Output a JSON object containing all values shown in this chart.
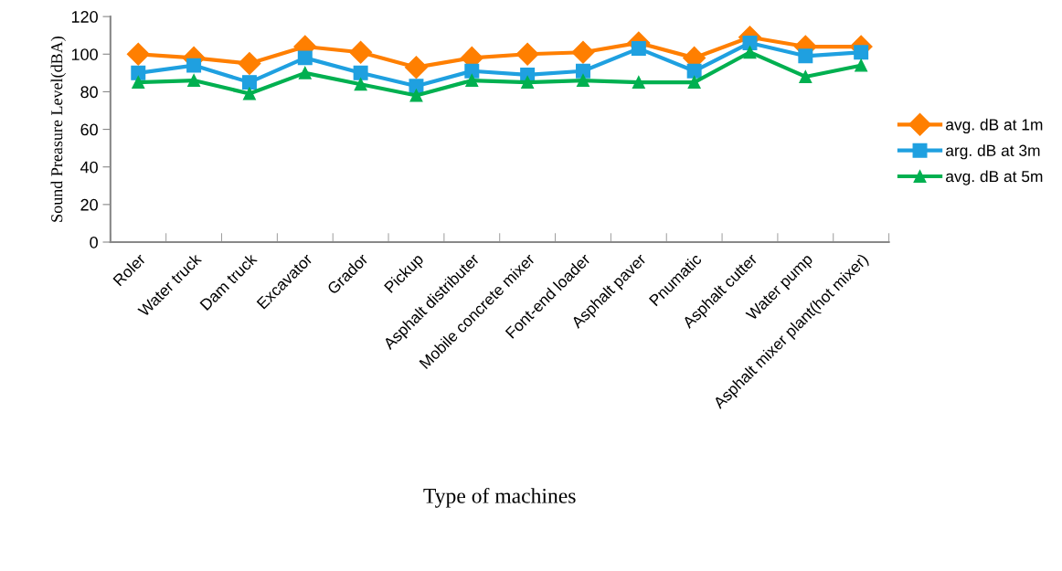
{
  "chart_data": {
    "type": "line",
    "xlabel": "Type of machines",
    "ylabel": "Sound Preasure Level(dBA)",
    "categories": [
      "Roler",
      "Water truck",
      "Dam truck",
      "Excavator",
      "Grador",
      "Pickup",
      "Asphalt distributer",
      "Mobile concrete mixer",
      "Font-end loader",
      "Asphalt paver",
      "Pnumatic",
      "Asphalt cutter",
      "Water pump",
      "Asphalt mixer plant(hot mixer)"
    ],
    "series": [
      {
        "name": "avg. dB at 1m",
        "color": "#ff7f00",
        "marker": "diamond",
        "values": [
          100,
          98,
          95,
          104,
          101,
          93,
          98,
          100,
          101,
          106,
          98,
          109,
          104,
          104
        ]
      },
      {
        "name": "arg. dB at 3m",
        "color": "#1fa0e0",
        "marker": "square",
        "values": [
          90,
          94,
          85,
          98,
          90,
          83,
          91,
          89,
          91,
          103,
          91,
          106,
          99,
          101
        ]
      },
      {
        "name": "avg. dB at 5m",
        "color": "#00b050",
        "marker": "triangle",
        "values": [
          85,
          86,
          79,
          90,
          84,
          78,
          86,
          85,
          86,
          85,
          85,
          101,
          88,
          94
        ]
      }
    ],
    "ylim": [
      0,
      120
    ],
    "yticks": [
      0,
      20,
      40,
      60,
      80,
      100,
      120
    ],
    "grid": false,
    "legend": "right"
  }
}
